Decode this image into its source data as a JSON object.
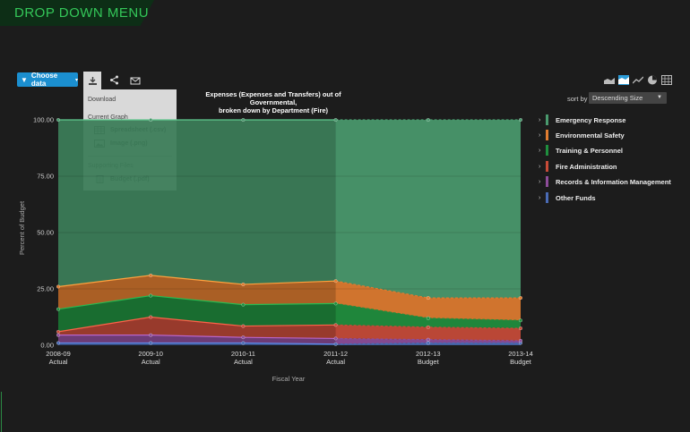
{
  "header": {
    "title": "DROP DOWN MENU"
  },
  "toolbar": {
    "choose_data_label": "Choose data",
    "download_icon": "download-icon",
    "share_icon": "share-icon",
    "email_icon": "email-icon"
  },
  "download_menu": {
    "title": "Download",
    "current_graph_header": "Current Graph",
    "spreadsheet_label": "Spreadsheet (.csv)",
    "image_label": "Image (.png)",
    "supporting_files_header": "Supporting Files",
    "budget_label": "Budget (.pdf)"
  },
  "view_icons": [
    "area-chart-icon",
    "percent-area-chart-icon",
    "line-chart-icon",
    "pie-chart-icon",
    "table-icon"
  ],
  "sort": {
    "label": "sort by",
    "selected": "Descending Size"
  },
  "colors": {
    "emergency": "#4a9a6e",
    "environmental": "#e07c30",
    "training": "#1f8f3e",
    "fire_admin": "#c84b38",
    "records": "#8e4d9a",
    "other": "#4a6bb5",
    "accent": "#1b8fd0",
    "banner_text": "#34c759"
  },
  "chart_data": {
    "type": "area",
    "title_line1": "Expenses (Expenses and Transfers) out of",
    "title_line2": "Governmental,",
    "title_line3": "broken down by Department (Fire)",
    "xlabel": "Fiscal Year",
    "ylabel": "Percent of Budget",
    "ylim": [
      0,
      100
    ],
    "yticks": [
      "100.00",
      "75.00",
      "50.00",
      "25.00",
      "0.00"
    ],
    "categories": [
      [
        "2008-09",
        "Actual"
      ],
      [
        "2009-10",
        "Actual"
      ],
      [
        "2010-11",
        "Actual"
      ],
      [
        "2011-12",
        "Actual"
      ],
      [
        "2012-13",
        "Budget"
      ],
      [
        "2013-14",
        "Budget"
      ]
    ],
    "stacked": true,
    "series": [
      {
        "name": "Other Funds",
        "values": [
          1,
          1,
          1,
          0.5,
          1,
          1
        ]
      },
      {
        "name": "Records & Information Management",
        "values": [
          3.5,
          3.5,
          2.5,
          2.5,
          1.5,
          1
        ]
      },
      {
        "name": "Fire Administration",
        "values": [
          1.5,
          8,
          5,
          6,
          5.5,
          5.5
        ]
      },
      {
        "name": "Training & Personnel",
        "values": [
          10,
          9.5,
          9.5,
          9.5,
          4,
          3.5
        ]
      },
      {
        "name": "Environmental Safety",
        "values": [
          10,
          9,
          9,
          10,
          9,
          10
        ]
      },
      {
        "name": "Emergency Response",
        "values": [
          74,
          69,
          73,
          71.5,
          79,
          79
        ]
      }
    ],
    "legend": [
      "Emergency Response",
      "Environmental Safety",
      "Training & Personnel",
      "Fire Administration",
      "Records & Information Management",
      "Other Funds"
    ],
    "legend_position": "right"
  }
}
